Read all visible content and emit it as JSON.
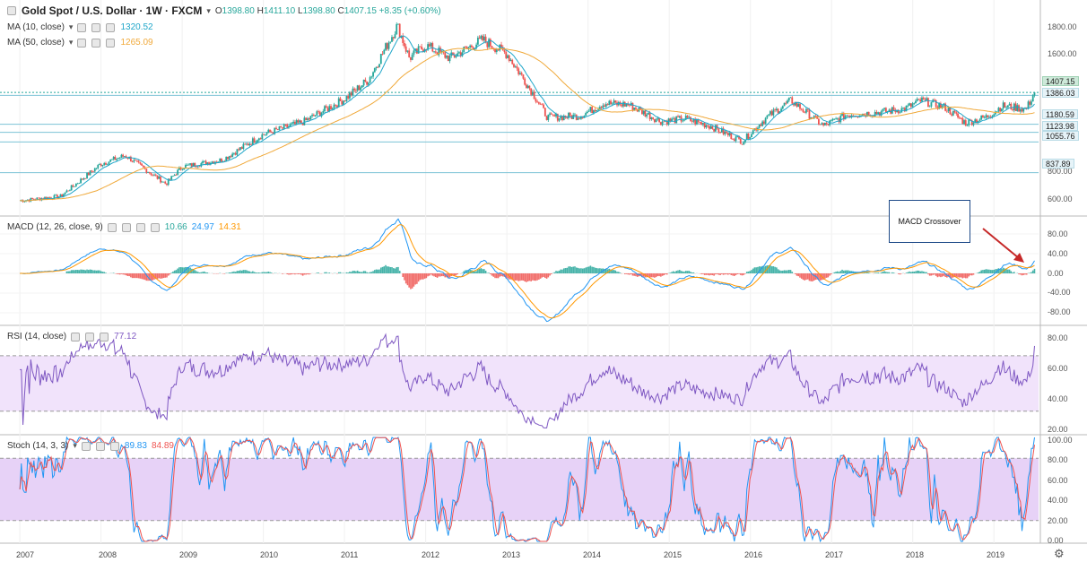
{
  "header": {
    "symbol_title": "Gold Spot / U.S. Dollar · 1W · FXCM",
    "ohlc": [
      {
        "k": "O",
        "v": "1398.80"
      },
      {
        "k": "H",
        "v": "1411.10"
      },
      {
        "k": "L",
        "v": "1398.80"
      },
      {
        "k": "C",
        "v": "1407.15"
      }
    ],
    "change": "+8.35 (+0.60%)"
  },
  "indicators": {
    "ma10": {
      "label": "MA (10, close)",
      "value": "1320.52",
      "color": "#1fa6c9"
    },
    "ma50": {
      "label": "MA (50, close)",
      "value": "1265.09",
      "color": "#f0a93a"
    },
    "macd": {
      "label": "MACD (12, 26, close, 9)",
      "hist": "10.66",
      "macd": "24.97",
      "signal": "14.31"
    },
    "rsi": {
      "label": "RSI (14, close)",
      "value": "77.12",
      "color": "#7e57c2"
    },
    "stoch": {
      "label": "Stoch (14, 3, 3)",
      "k": "89.83",
      "d": "84.89"
    }
  },
  "price_axis": [
    "1800.00",
    "1600.00",
    "800.00",
    "600.00"
  ],
  "price_tags": [
    {
      "text": "1407.15",
      "last": true
    },
    {
      "text": "1386.03",
      "last": false
    },
    {
      "text": "1180.59",
      "last": false
    },
    {
      "text": "1123.98",
      "last": false
    },
    {
      "text": "1055.76",
      "last": false
    },
    {
      "text": "837.89",
      "last": false
    }
  ],
  "macd_axis": [
    "80.00",
    "40.00",
    "0.00",
    "-40.00",
    "-80.00"
  ],
  "rsi_axis": [
    "80.00",
    "60.00",
    "40.00",
    "20.00"
  ],
  "stoch_axis": [
    "100.00",
    "80.00",
    "60.00",
    "40.00",
    "20.00",
    "0.00"
  ],
  "x_axis": [
    "2007",
    "2008",
    "2009",
    "2010",
    "2011",
    "2012",
    "2013",
    "2014",
    "2015",
    "2016",
    "2017",
    "2018",
    "2019"
  ],
  "annotation": "MACD Crossover",
  "colors": {
    "up": "#26a69a",
    "down": "#ef5350",
    "macd_line": "#2196f3",
    "signal_line": "#ff9800",
    "band_fill": "#f1e3fb"
  },
  "chart_data": {
    "type": "line",
    "x": [
      2007.0,
      2007.5,
      2008.0,
      2008.3,
      2008.8,
      2009.0,
      2009.5,
      2010.0,
      2010.5,
      2011.0,
      2011.3,
      2011.65,
      2011.8,
      2012.0,
      2012.3,
      2012.7,
      2013.0,
      2013.3,
      2013.5,
      2013.9,
      2014.2,
      2014.5,
      2014.9,
      2015.2,
      2015.5,
      2015.9,
      2016.2,
      2016.5,
      2016.9,
      2017.2,
      2017.5,
      2017.9,
      2018.1,
      2018.4,
      2018.65,
      2018.9,
      2019.1,
      2019.4,
      2019.5
    ],
    "series": [
      {
        "name": "Gold Spot / U.S. Dollar",
        "values": [
          640,
          670,
          900,
          960,
          760,
          880,
          930,
          1110,
          1200,
          1360,
          1500,
          1880,
          1650,
          1740,
          1650,
          1780,
          1680,
          1420,
          1230,
          1240,
          1330,
          1320,
          1200,
          1220,
          1170,
          1060,
          1230,
          1350,
          1170,
          1250,
          1260,
          1290,
          1350,
          1300,
          1190,
          1230,
          1310,
          1290,
          1407
        ]
      }
    ],
    "ylim": [
      550,
      1960
    ]
  }
}
